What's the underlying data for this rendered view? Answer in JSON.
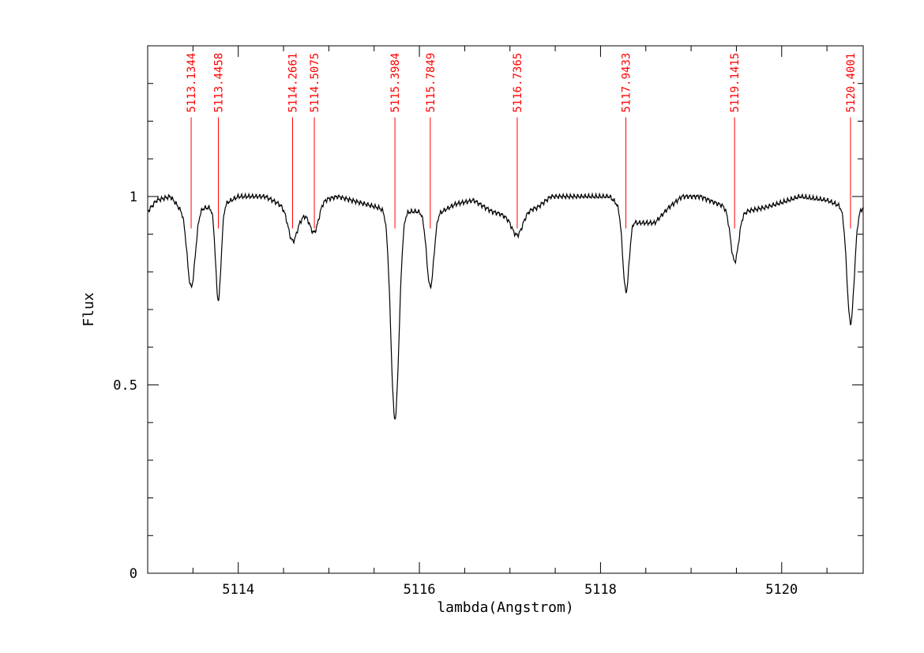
{
  "chart_data": {
    "type": "line",
    "title": "",
    "xlabel": "lambda(Angstrom)",
    "ylabel": "Flux",
    "xlim": [
      5113.0,
      5120.9
    ],
    "ylim": [
      0.0,
      1.4
    ],
    "grid": false,
    "x_ticks": [
      {
        "value": 5114,
        "label": "5114"
      },
      {
        "value": 5116,
        "label": "5116"
      },
      {
        "value": 5118,
        "label": "5118"
      },
      {
        "value": 5120,
        "label": "5120"
      }
    ],
    "y_ticks": [
      {
        "value": 0,
        "label": "0"
      },
      {
        "value": 0.5,
        "label": "0.5"
      },
      {
        "value": 1,
        "label": "1"
      }
    ],
    "colors": {
      "spectrum": "#000000",
      "line_markers": "#ff0000",
      "axes": "#000000"
    },
    "continuum": [
      [
        5113.0,
        0.96
      ],
      [
        5113.1,
        0.99
      ],
      [
        5113.25,
        1.0
      ],
      [
        5113.35,
        0.97
      ],
      [
        5113.7,
        0.97
      ],
      [
        5113.85,
        0.98
      ],
      [
        5114.0,
        1.0
      ],
      [
        5114.3,
        1.0
      ],
      [
        5114.45,
        0.98
      ],
      [
        5114.7,
        0.95
      ],
      [
        5114.92,
        0.99
      ],
      [
        5115.1,
        1.0
      ],
      [
        5115.4,
        0.98
      ],
      [
        5115.7,
        0.96
      ],
      [
        5115.95,
        0.96
      ],
      [
        5116.25,
        0.96
      ],
      [
        5116.4,
        0.98
      ],
      [
        5116.6,
        0.99
      ],
      [
        5116.8,
        0.96
      ],
      [
        5116.95,
        0.95
      ],
      [
        5117.3,
        0.97
      ],
      [
        5117.45,
        1.0
      ],
      [
        5117.8,
        1.0
      ],
      [
        5118.1,
        1.0
      ],
      [
        5118.4,
        0.93
      ],
      [
        5118.6,
        0.93
      ],
      [
        5118.75,
        0.97
      ],
      [
        5118.9,
        1.0
      ],
      [
        5119.1,
        1.0
      ],
      [
        5119.3,
        0.98
      ],
      [
        5119.6,
        0.96
      ],
      [
        5119.8,
        0.97
      ],
      [
        5119.95,
        0.98
      ],
      [
        5120.2,
        1.0
      ],
      [
        5120.5,
        0.99
      ],
      [
        5120.8,
        0.96
      ],
      [
        5120.9,
        0.97
      ]
    ],
    "absorption_lines": [
      {
        "label": "5113.1344",
        "center": 5113.48,
        "depth": 0.21,
        "width": 0.045
      },
      {
        "label": "5113.4458",
        "center": 5113.78,
        "depth": 0.25,
        "width": 0.03
      },
      {
        "label": "5114.2661",
        "center": 5114.6,
        "depth": 0.08,
        "width": 0.05
      },
      {
        "label": "5114.5075",
        "center": 5114.84,
        "depth": 0.07,
        "width": 0.05
      },
      {
        "label": "5115.3984",
        "center": 5115.73,
        "depth": 0.55,
        "width": 0.045
      },
      {
        "label": "5115.7849",
        "center": 5116.12,
        "depth": 0.2,
        "width": 0.04
      },
      {
        "label": "5116.7365",
        "center": 5117.08,
        "depth": 0.06,
        "width": 0.06
      },
      {
        "label": "5117.9433",
        "center": 5118.28,
        "depth": 0.21,
        "width": 0.035
      },
      {
        "label": "5119.1415",
        "center": 5119.48,
        "depth": 0.14,
        "width": 0.045
      },
      {
        "label": "5120.4001",
        "center": 5120.76,
        "depth": 0.3,
        "width": 0.04
      }
    ],
    "marker_line_y_range": [
      0.915,
      1.21
    ]
  }
}
